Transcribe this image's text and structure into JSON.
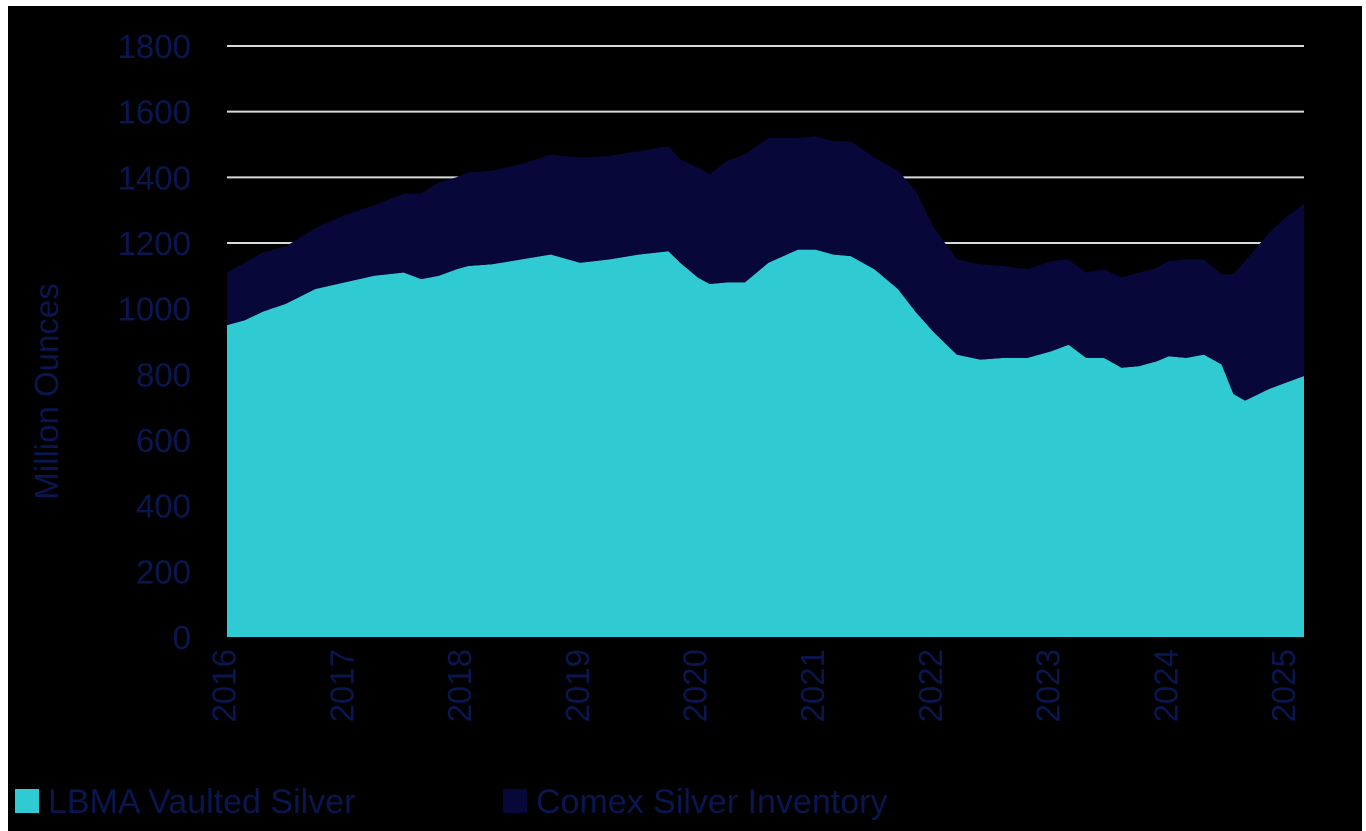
{
  "chart_data": {
    "type": "area",
    "stacked": true,
    "title": "",
    "xlabel": "",
    "ylabel": "Million Ounces",
    "ylim": [
      0,
      1800
    ],
    "yticks": [
      "0",
      "200",
      "400",
      "600",
      "800",
      "1000",
      "1200",
      "1400",
      "1600",
      "1800"
    ],
    "xticks": [
      "2016",
      "2017",
      "2018",
      "2019",
      "2020",
      "2021",
      "2022",
      "2023",
      "2024",
      "2025"
    ],
    "xlim": [
      2016.0,
      2025.15
    ],
    "grid": "horizontal",
    "legend_position": "bottom",
    "background": "#000000",
    "text_color": "#0a1650",
    "grid_color": "#d9d9d9",
    "series": [
      {
        "name": "LBMA Vaulted Silver",
        "color": "#30cad3",
        "x": [
          2016.0,
          2016.15,
          2016.3,
          2016.5,
          2016.75,
          2017.0,
          2017.25,
          2017.5,
          2017.65,
          2017.8,
          2017.95,
          2018.05,
          2018.25,
          2018.5,
          2018.75,
          2019.0,
          2019.25,
          2019.5,
          2019.75,
          2019.85,
          2020.0,
          2020.1,
          2020.25,
          2020.4,
          2020.6,
          2020.85,
          2021.0,
          2021.15,
          2021.3,
          2021.5,
          2021.7,
          2021.85,
          2022.0,
          2022.2,
          2022.4,
          2022.6,
          2022.8,
          2023.0,
          2023.15,
          2023.3,
          2023.45,
          2023.6,
          2023.75,
          2023.9,
          2024.0,
          2024.15,
          2024.3,
          2024.45,
          2024.55,
          2024.65,
          2024.85,
          2025.0,
          2025.15
        ],
        "values": [
          950,
          965,
          990,
          1015,
          1060,
          1080,
          1100,
          1110,
          1090,
          1100,
          1120,
          1130,
          1135,
          1150,
          1165,
          1140,
          1150,
          1165,
          1175,
          1140,
          1095,
          1075,
          1080,
          1080,
          1140,
          1180,
          1180,
          1165,
          1160,
          1120,
          1060,
          990,
          930,
          860,
          845,
          850,
          850,
          870,
          890,
          850,
          850,
          820,
          825,
          840,
          855,
          850,
          860,
          830,
          740,
          720,
          755,
          775,
          795
        ]
      },
      {
        "name": "Comex Silver Inventory",
        "color": "#07073a",
        "x": [
          2016.0,
          2016.15,
          2016.3,
          2016.5,
          2016.75,
          2017.0,
          2017.25,
          2017.5,
          2017.65,
          2017.8,
          2017.95,
          2018.05,
          2018.25,
          2018.5,
          2018.75,
          2019.0,
          2019.25,
          2019.5,
          2019.75,
          2019.85,
          2020.0,
          2020.1,
          2020.25,
          2020.4,
          2020.6,
          2020.85,
          2021.0,
          2021.15,
          2021.3,
          2021.5,
          2021.7,
          2021.85,
          2022.0,
          2022.2,
          2022.4,
          2022.6,
          2022.8,
          2023.0,
          2023.15,
          2023.3,
          2023.45,
          2023.6,
          2023.75,
          2023.9,
          2024.0,
          2024.15,
          2024.3,
          2024.45,
          2024.55,
          2024.65,
          2024.85,
          2025.0,
          2025.15
        ],
        "values": [
          160,
          175,
          180,
          175,
          185,
          205,
          215,
          240,
          260,
          285,
          280,
          285,
          285,
          290,
          305,
          320,
          315,
          315,
          320,
          315,
          335,
          335,
          370,
          390,
          380,
          340,
          345,
          345,
          350,
          340,
          360,
          370,
          320,
          290,
          290,
          280,
          270,
          275,
          260,
          260,
          270,
          275,
          285,
          285,
          290,
          300,
          290,
          275,
          365,
          425,
          475,
          505,
          525
        ]
      }
    ]
  }
}
